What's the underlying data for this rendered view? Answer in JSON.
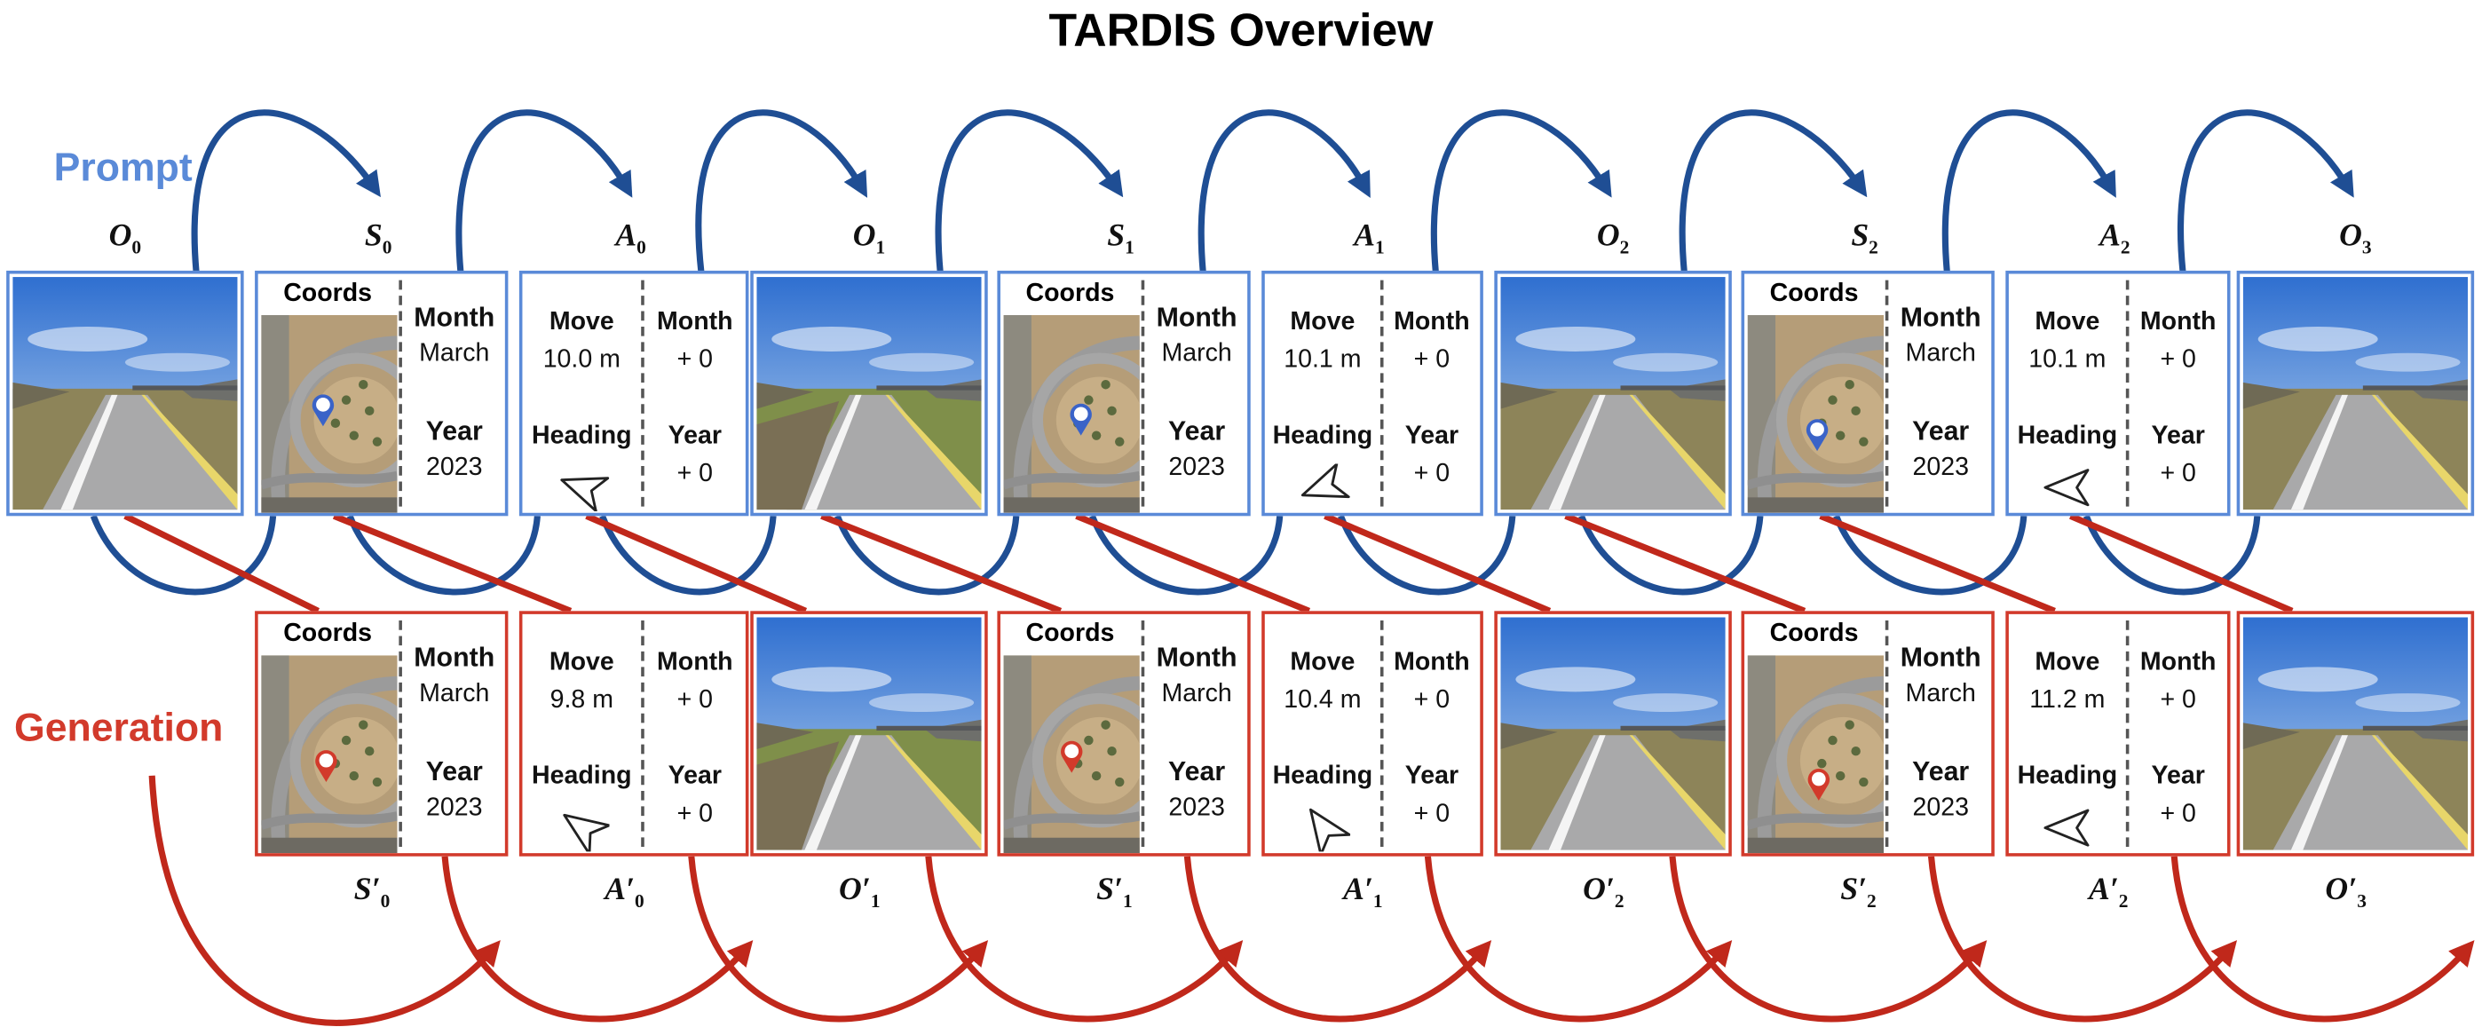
{
  "title": "TARDIS Overview",
  "row_labels": {
    "prompt": "Prompt",
    "generation": "Generation"
  },
  "colors": {
    "prompt": "#5a8ad8",
    "prompt_arrow": "#1f4e94",
    "generation": "#d23a2b",
    "generation_arrow": "#c0281b"
  },
  "prompt": {
    "symbols": [
      {
        "base": "O",
        "sub": "0"
      },
      {
        "base": "S",
        "sub": "0"
      },
      {
        "base": "A",
        "sub": "0"
      },
      {
        "base": "O",
        "sub": "1"
      },
      {
        "base": "S",
        "sub": "1"
      },
      {
        "base": "A",
        "sub": "1"
      },
      {
        "base": "O",
        "sub": "2"
      },
      {
        "base": "S",
        "sub": "2"
      },
      {
        "base": "A",
        "sub": "2"
      },
      {
        "base": "O",
        "sub": "3"
      }
    ],
    "states": [
      {
        "coords": "Coords",
        "month_label": "Month",
        "month": "March",
        "year_label": "Year",
        "year": "2023",
        "pin": "blue-pin-icon"
      },
      {
        "coords": "Coords",
        "month_label": "Month",
        "month": "March",
        "year_label": "Year",
        "year": "2023",
        "pin": "blue-pin-icon"
      },
      {
        "coords": "Coords",
        "month_label": "Month",
        "month": "March",
        "year_label": "Year",
        "year": "2023",
        "pin": "blue-pin-icon"
      }
    ],
    "actions": [
      {
        "move_label": "Move",
        "move": "10.0 m",
        "heading_label": "Heading",
        "month_label": "Month",
        "month_delta": "+ 0",
        "year_label": "Year",
        "year_delta": "+ 0",
        "heading_deg": 200
      },
      {
        "move_label": "Move",
        "move": "10.1 m",
        "heading_label": "Heading",
        "month_label": "Month",
        "month_delta": "+ 0",
        "year_label": "Year",
        "year_delta": "+ 0",
        "heading_deg": 160
      },
      {
        "move_label": "Move",
        "move": "10.1 m",
        "heading_label": "Heading",
        "month_label": "Month",
        "month_delta": "+ 0",
        "year_label": "Year",
        "year_delta": "+ 0",
        "heading_deg": 180
      }
    ]
  },
  "generation": {
    "symbols": [
      {
        "base": "S′",
        "sub": "0"
      },
      {
        "base": "A′",
        "sub": "0"
      },
      {
        "base": "O′",
        "sub": "1"
      },
      {
        "base": "S′",
        "sub": "1"
      },
      {
        "base": "A′",
        "sub": "1"
      },
      {
        "base": "O′",
        "sub": "2"
      },
      {
        "base": "S′",
        "sub": "2"
      },
      {
        "base": "A′",
        "sub": "2"
      },
      {
        "base": "O′",
        "sub": "3"
      }
    ],
    "states": [
      {
        "coords": "Coords",
        "month_label": "Month",
        "month": "March",
        "year_label": "Year",
        "year": "2023",
        "pin": "red-pin-icon"
      },
      {
        "coords": "Coords",
        "month_label": "Month",
        "month": "March",
        "year_label": "Year",
        "year": "2023",
        "pin": "red-pin-icon"
      },
      {
        "coords": "Coords",
        "month_label": "Month",
        "month": "March",
        "year_label": "Year",
        "year": "2023",
        "pin": "red-pin-icon"
      }
    ],
    "actions": [
      {
        "move_label": "Move",
        "move": "9.8 m",
        "heading_label": "Heading",
        "month_label": "Month",
        "month_delta": "+ 0",
        "year_label": "Year",
        "year_delta": "+ 0",
        "heading_deg": 215
      },
      {
        "move_label": "Move",
        "move": "10.4 m",
        "heading_label": "Heading",
        "month_label": "Month",
        "month_delta": "+ 0",
        "year_label": "Year",
        "year_delta": "+ 0",
        "heading_deg": 235
      },
      {
        "move_label": "Move",
        "move": "11.2 m",
        "heading_label": "Heading",
        "month_label": "Month",
        "month_delta": "+ 0",
        "year_label": "Year",
        "year_delta": "+ 0",
        "heading_deg": 180
      }
    ]
  }
}
